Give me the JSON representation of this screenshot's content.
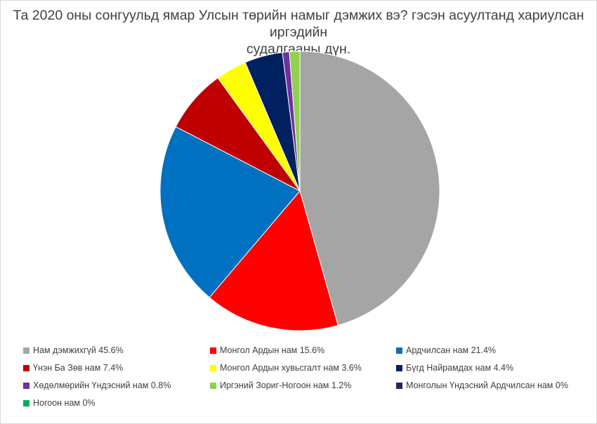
{
  "title_lines": [
    "Та 2020 оны сонгуульд ямар Улсын төрийн намыг дэмжих вэ? гэсэн асуултанд хариулсан иргэдийн",
    "судалгааны дүн."
  ],
  "chart_data": {
    "type": "pie",
    "title": "Та 2020 оны сонгуульд ямар Улсын төрийн намыг дэмжих вэ? гэсэн асуултанд хариулсан иргэдийн судалгааны дүн.",
    "unit": "%",
    "legend_position": "bottom",
    "slices": [
      {
        "label": "Нам дэмжихгүй 45.6%",
        "value": 45.6,
        "color": "#a5a5a5"
      },
      {
        "label": "Монгол Ардын нам 15.6%",
        "value": 15.6,
        "color": "#ff0000"
      },
      {
        "label": "Ардчилсан нам 21.4%",
        "value": 21.4,
        "color": "#0070c0"
      },
      {
        "label": "Үнэн Ба Зөв нам 7.4%",
        "value": 7.4,
        "color": "#c00000"
      },
      {
        "label": "Монгол Ардын хувьсгалт нам 3.6%",
        "value": 3.6,
        "color": "#ffff00"
      },
      {
        "label": "Бүгд Найрамдах нам 4.4%",
        "value": 4.4,
        "color": "#002060"
      },
      {
        "label": "Хөдөлмөрийн Үндэсний нам 0.8%",
        "value": 0.8,
        "color": "#7030a0"
      },
      {
        "label": "Иргэний Зориг-Ногоон нам 1.2%",
        "value": 1.2,
        "color": "#92d050"
      },
      {
        "label": "Монголын Үндэсний Ардчилсан нам 0%",
        "value": 0,
        "color": "#1f2a5c"
      },
      {
        "label": "Ногоон нам 0%",
        "value": 0,
        "color": "#00b050"
      }
    ]
  }
}
